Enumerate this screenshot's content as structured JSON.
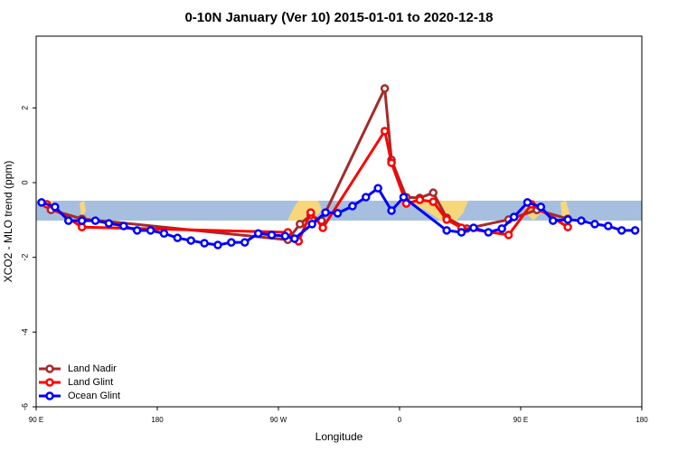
{
  "chart_data": {
    "type": "line",
    "title": "0-10N January (Ver 10)   2015-01-01 to 2020-12-18",
    "x_label": "Longitude",
    "y_label": "XCO2 - MLO trend (ppm)",
    "xlim": [
      90,
      540
    ],
    "xticks": [
      {
        "value": 90,
        "label": "90 E"
      },
      {
        "value": 180,
        "label": "180"
      },
      {
        "value": 270,
        "label": "90 W"
      },
      {
        "value": 360,
        "label": "0"
      },
      {
        "value": 450,
        "label": "90 E"
      },
      {
        "value": 540,
        "label": "180"
      }
    ],
    "ylim": [
      -6,
      3.92
    ],
    "yticks": [
      -6,
      -4,
      -2,
      0,
      2
    ],
    "legend": "bottom-left",
    "series": [
      {
        "name": "Land Nadir",
        "color": "#a52a2a",
        "x": [
          101,
          124,
          277,
          286,
          294,
          302,
          349,
          354,
          365,
          375,
          385,
          395,
          410,
          441,
          462,
          485
        ],
        "values": [
          -0.73,
          -0.97,
          -1.53,
          -1.11,
          -0.87,
          -1.02,
          2.52,
          0.61,
          -0.39,
          -0.41,
          -0.27,
          -0.94,
          -1.23,
          -0.99,
          -0.73,
          -0.97
        ]
      },
      {
        "name": "Land Glint",
        "color": "#ff0000",
        "x": [
          98,
          124,
          277,
          285,
          294,
          303,
          349,
          354,
          365,
          375,
          385,
          395,
          406,
          441,
          458,
          485
        ],
        "values": [
          -0.58,
          -1.19,
          -1.33,
          -1.57,
          -0.8,
          -1.21,
          1.38,
          0.53,
          -0.56,
          -0.46,
          -0.51,
          -0.99,
          -1.21,
          -1.4,
          -0.58,
          -1.19
        ]
      },
      {
        "name": "Ocean Glint",
        "color": "#0000ff",
        "x": [
          94,
          104,
          114,
          124,
          134,
          144,
          155,
          165,
          175,
          185,
          195,
          205,
          215,
          225,
          235,
          245,
          255,
          265,
          275,
          282,
          295,
          305,
          314,
          325,
          335,
          344,
          354,
          363,
          395,
          406,
          415,
          426,
          436,
          445,
          455,
          465,
          474,
          485,
          495,
          505,
          515,
          525,
          535
        ],
        "values": [
          -0.53,
          -0.65,
          -1.02,
          -1.02,
          -1.02,
          -1.09,
          -1.16,
          -1.28,
          -1.28,
          -1.36,
          -1.48,
          -1.55,
          -1.62,
          -1.67,
          -1.6,
          -1.6,
          -1.36,
          -1.4,
          -1.43,
          -1.5,
          -1.11,
          -0.8,
          -0.82,
          -0.63,
          -0.39,
          -0.15,
          -0.75,
          -0.39,
          -1.28,
          -1.33,
          -1.21,
          -1.33,
          -1.23,
          -0.92,
          -0.53,
          -0.65,
          -1.02,
          -0.99,
          -1.02,
          -1.11,
          -1.16,
          -1.28,
          -1.28
        ]
      }
    ]
  }
}
